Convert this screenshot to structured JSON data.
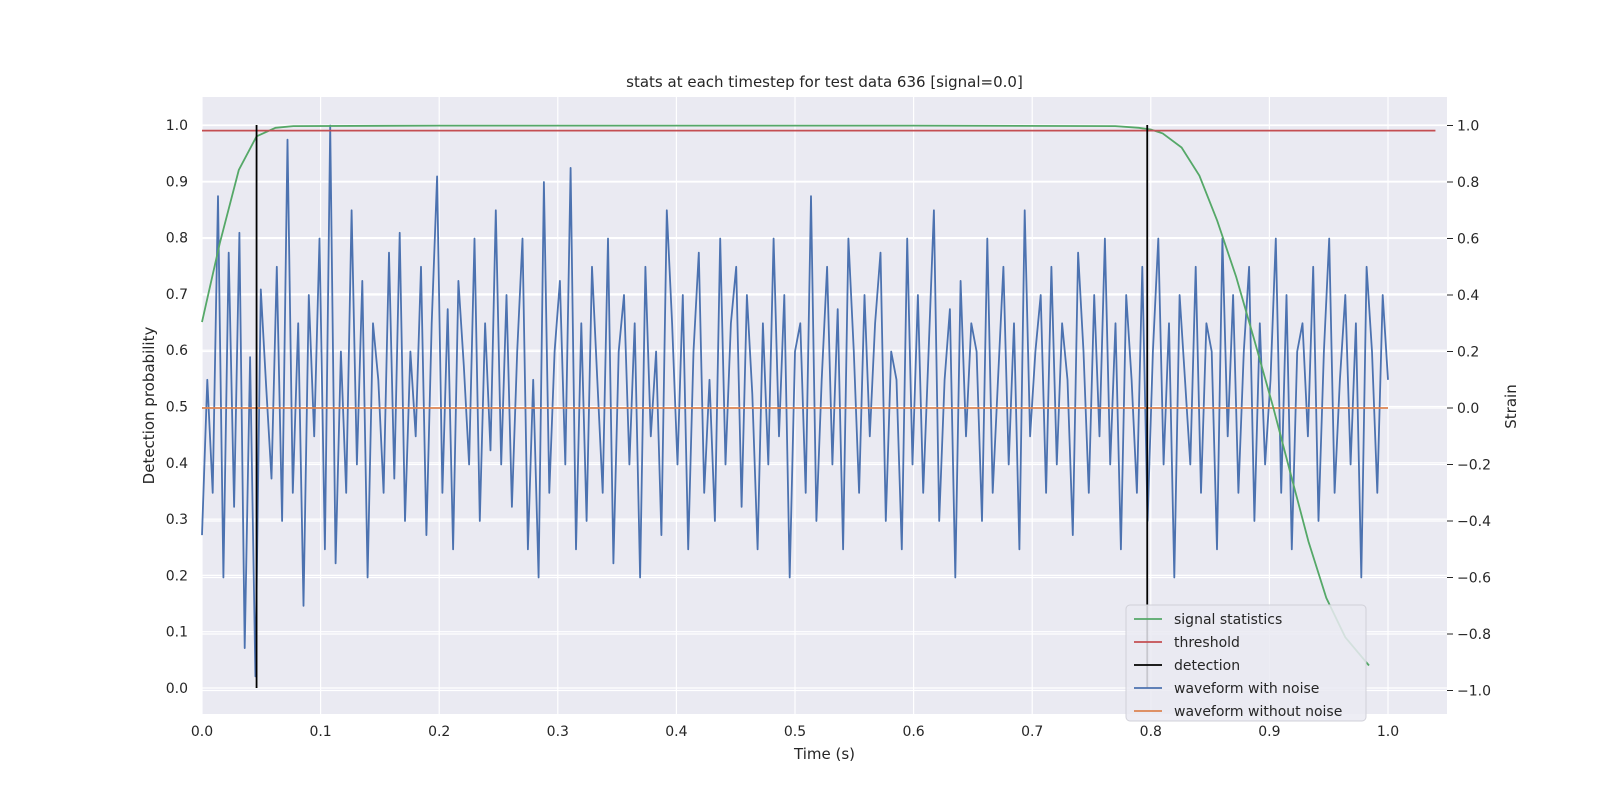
{
  "chart_data": {
    "type": "line",
    "title": "stats at each timestep for test data 636 [signal=0.0]",
    "xlabel": "Time (s)",
    "ylabel_left": "Detection probability",
    "ylabel_right": "Strain",
    "xlim": [
      0.0,
      1.05
    ],
    "ylim_left": [
      -0.048,
      1.048
    ],
    "ylim_right": [
      -1.09,
      1.09
    ],
    "xticks": [
      "0.0",
      "0.1",
      "0.2",
      "0.3",
      "0.4",
      "0.5",
      "0.6",
      "0.7",
      "0.8",
      "0.9",
      "1.0"
    ],
    "yticks_left": [
      "0.0",
      "0.1",
      "0.2",
      "0.3",
      "0.4",
      "0.5",
      "0.6",
      "0.7",
      "0.8",
      "0.9",
      "1.0"
    ],
    "yticks_right": [
      "−1.0",
      "−0.8",
      "−0.6",
      "−0.4",
      "−0.2",
      "0.0",
      "0.2",
      "0.4",
      "0.6",
      "0.8",
      "1.0"
    ],
    "grid": true,
    "legend_position": "lower-right",
    "colors": {
      "background": "#eaeaf2",
      "grid": "#ffffff",
      "signal_statistics": "#55a868",
      "threshold": "#c44e52",
      "detection": "#000000",
      "waveform_with_noise": "#4c72b0",
      "waveform_without_noise": "#dd8452"
    },
    "series": [
      {
        "name": "signal statistics",
        "axis": "left",
        "x": [
          0.0,
          0.015,
          0.031,
          0.046,
          0.062,
          0.077,
          0.2,
          0.4,
          0.6,
          0.77,
          0.79,
          0.8,
          0.81,
          0.826,
          0.841,
          0.856,
          0.872,
          0.887,
          0.903,
          0.918,
          0.933,
          0.948,
          0.964,
          0.984
        ],
        "y": [
          0.65,
          0.79,
          0.92,
          0.98,
          0.995,
          0.998,
          0.999,
          0.999,
          0.999,
          0.998,
          0.995,
          0.992,
          0.985,
          0.96,
          0.91,
          0.83,
          0.73,
          0.62,
          0.5,
          0.38,
          0.26,
          0.16,
          0.09,
          0.04
        ]
      },
      {
        "name": "threshold",
        "axis": "left",
        "x": [
          0.0,
          1.04
        ],
        "y": [
          0.99,
          0.99
        ]
      },
      {
        "name": "detection",
        "axis": "left",
        "segments": [
          {
            "x": 0.046,
            "y0": 0.0,
            "y1": 1.0
          },
          {
            "x": 0.797,
            "y0": 0.0,
            "y1": 1.0
          }
        ]
      },
      {
        "name": "waveform with noise",
        "axis": "right",
        "x_start": 0.0,
        "x_end": 1.0,
        "y": [
          -0.45,
          0.1,
          -0.3,
          0.75,
          -0.6,
          0.55,
          -0.35,
          0.62,
          -0.85,
          0.18,
          -0.95,
          0.42,
          0.08,
          -0.25,
          0.5,
          -0.4,
          0.95,
          -0.3,
          0.3,
          -0.7,
          0.4,
          -0.1,
          0.6,
          -0.5,
          1.0,
          -0.55,
          0.2,
          -0.3,
          0.7,
          -0.2,
          0.45,
          -0.6,
          0.3,
          0.1,
          -0.3,
          0.55,
          -0.25,
          0.62,
          -0.4,
          0.2,
          -0.1,
          0.5,
          -0.45,
          0.3,
          0.82,
          -0.3,
          0.35,
          -0.5,
          0.45,
          0.15,
          -0.2,
          0.6,
          -0.4,
          0.3,
          -0.15,
          0.7,
          -0.2,
          0.4,
          -0.35,
          0.2,
          0.6,
          -0.5,
          0.1,
          -0.6,
          0.8,
          -0.3,
          0.2,
          0.45,
          -0.2,
          0.85,
          -0.5,
          0.3,
          -0.4,
          0.5,
          0.1,
          -0.3,
          0.6,
          -0.55,
          0.2,
          0.4,
          -0.2,
          0.3,
          -0.6,
          0.5,
          -0.1,
          0.2,
          -0.45,
          0.7,
          0.3,
          -0.2,
          0.4,
          -0.5,
          0.2,
          0.55,
          -0.3,
          0.1,
          -0.4,
          0.6,
          -0.2,
          0.3,
          0.5,
          -0.35,
          0.4,
          0.05,
          -0.5,
          0.3,
          -0.2,
          0.6,
          -0.1,
          0.4,
          -0.6,
          0.2,
          0.3,
          -0.3,
          0.75,
          -0.4,
          0.1,
          0.5,
          -0.2,
          0.35,
          -0.5,
          0.6,
          0.2,
          -0.3,
          0.4,
          -0.1,
          0.3,
          0.55,
          -0.4,
          0.2,
          0.1,
          -0.5,
          0.6,
          -0.2,
          0.4,
          -0.3,
          0.2,
          0.7,
          -0.4,
          0.1,
          0.35,
          -0.6,
          0.45,
          -0.1,
          0.3,
          0.2,
          -0.4,
          0.6,
          -0.3,
          0.1,
          0.5,
          -0.2,
          0.3,
          -0.5,
          0.7,
          -0.1,
          0.2,
          0.4,
          -0.3,
          0.5,
          -0.2,
          0.3,
          0.1,
          -0.45,
          0.55,
          0.2,
          -0.3,
          0.4,
          -0.1,
          0.6,
          -0.2,
          0.3,
          -0.5,
          0.4,
          0.1,
          -0.3,
          0.5,
          -0.4,
          0.2,
          0.6,
          -0.2,
          0.3,
          -0.6,
          0.4,
          0.1,
          -0.2,
          0.5,
          -0.3,
          0.3,
          0.2,
          -0.5,
          0.6,
          -0.1,
          0.4,
          -0.3,
          0.2,
          0.5,
          -0.4,
          0.3,
          -0.2,
          0.1,
          0.6,
          -0.3,
          0.4,
          -0.5,
          0.2,
          0.3,
          -0.1,
          0.5,
          -0.4,
          0.2,
          0.6,
          -0.3,
          0.1,
          0.4,
          -0.2,
          0.3,
          -0.6,
          0.5,
          0.2,
          -0.3,
          0.4,
          0.1
        ]
      },
      {
        "name": "waveform without noise",
        "axis": "right",
        "x": [
          0.0,
          1.0
        ],
        "y": [
          0.0,
          0.0
        ]
      }
    ],
    "legend": [
      {
        "label": "signal statistics",
        "color": "#55a868"
      },
      {
        "label": "threshold",
        "color": "#c44e52"
      },
      {
        "label": "detection",
        "color": "#000000"
      },
      {
        "label": "waveform with noise",
        "color": "#4c72b0"
      },
      {
        "label": "waveform without noise",
        "color": "#dd8452"
      }
    ]
  }
}
